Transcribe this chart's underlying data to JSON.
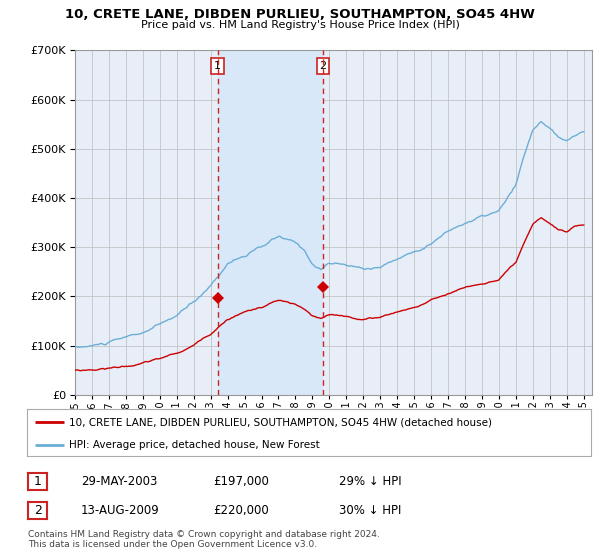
{
  "title": "10, CRETE LANE, DIBDEN PURLIEU, SOUTHAMPTON, SO45 4HW",
  "subtitle": "Price paid vs. HM Land Registry's House Price Index (HPI)",
  "legend_line1": "10, CRETE LANE, DIBDEN PURLIEU, SOUTHAMPTON, SO45 4HW (detached house)",
  "legend_line2": "HPI: Average price, detached house, New Forest",
  "footnote": "Contains HM Land Registry data © Crown copyright and database right 2024.\nThis data is licensed under the Open Government Licence v3.0.",
  "transaction1_date": "29-MAY-2003",
  "transaction1_price": "£197,000",
  "transaction1_hpi": "29% ↓ HPI",
  "transaction2_date": "13-AUG-2009",
  "transaction2_price": "£220,000",
  "transaction2_hpi": "30% ↓ HPI",
  "vline1_x": 2003.41,
  "vline2_x": 2009.62,
  "marker1_y": 197000,
  "marker2_y": 220000,
  "ylim_max": 700000,
  "xlim_start": 1995.0,
  "xlim_end": 2025.5,
  "hpi_color": "#6baed6",
  "price_color": "#cc0000",
  "vline_color": "#cc2222",
  "shade_color": "#d8e8f8",
  "grid_color": "#bbbbbb",
  "bg_color": "#ffffff",
  "plot_bg_color": "#e8eef8",
  "yticks": [
    0,
    100000,
    200000,
    300000,
    400000,
    500000,
    600000,
    700000
  ]
}
